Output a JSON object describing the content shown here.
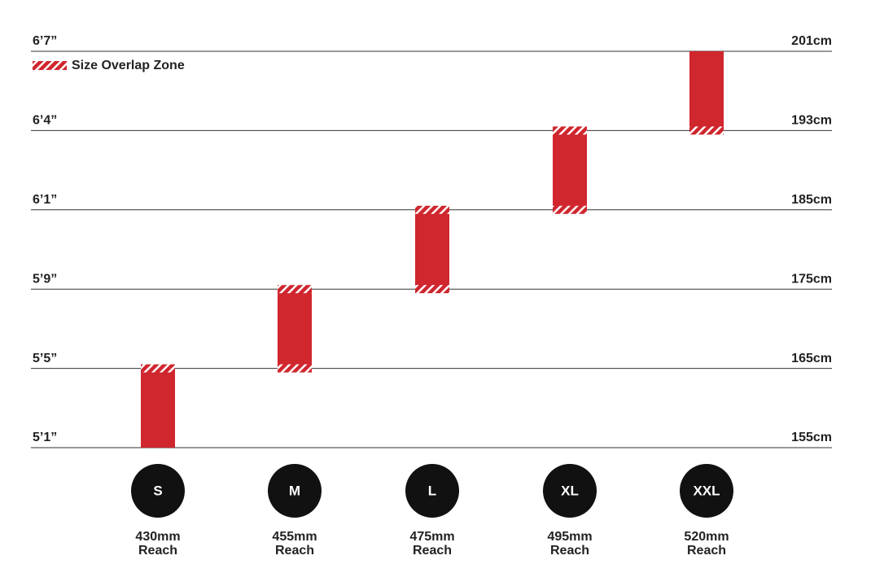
{
  "chart_data": {
    "type": "range-bar",
    "legend": "Size Overlap Zone",
    "categories": [
      "S",
      "M",
      "L",
      "XL",
      "XXL"
    ],
    "reach": [
      "430mm",
      "455mm",
      "475mm",
      "495mm",
      "520mm"
    ],
    "reach_label": "Reach",
    "low": [
      155,
      165,
      175,
      185,
      193
    ],
    "high": [
      165,
      175,
      185,
      193,
      201
    ],
    "color": "#d0262e",
    "ylim": [
      155,
      201
    ],
    "yticks": [
      {
        "value": 155,
        "label": "5’1”"
      },
      {
        "value": 165,
        "label": "5’5”"
      },
      {
        "value": 175,
        "label": "5’9”"
      },
      {
        "value": 185,
        "label": "6’1”"
      },
      {
        "value": 193,
        "label": "6’4”"
      },
      {
        "value": 201,
        "label": "6’7”"
      }
    ],
    "y2ticks": [
      {
        "value": 155,
        "label": "155cm"
      },
      {
        "value": 165,
        "label": "165cm"
      },
      {
        "value": 175,
        "label": "175cm"
      },
      {
        "value": 185,
        "label": "185cm"
      },
      {
        "value": 193,
        "label": "193cm"
      },
      {
        "value": 201,
        "label": "201cm"
      }
    ],
    "grid": true
  }
}
